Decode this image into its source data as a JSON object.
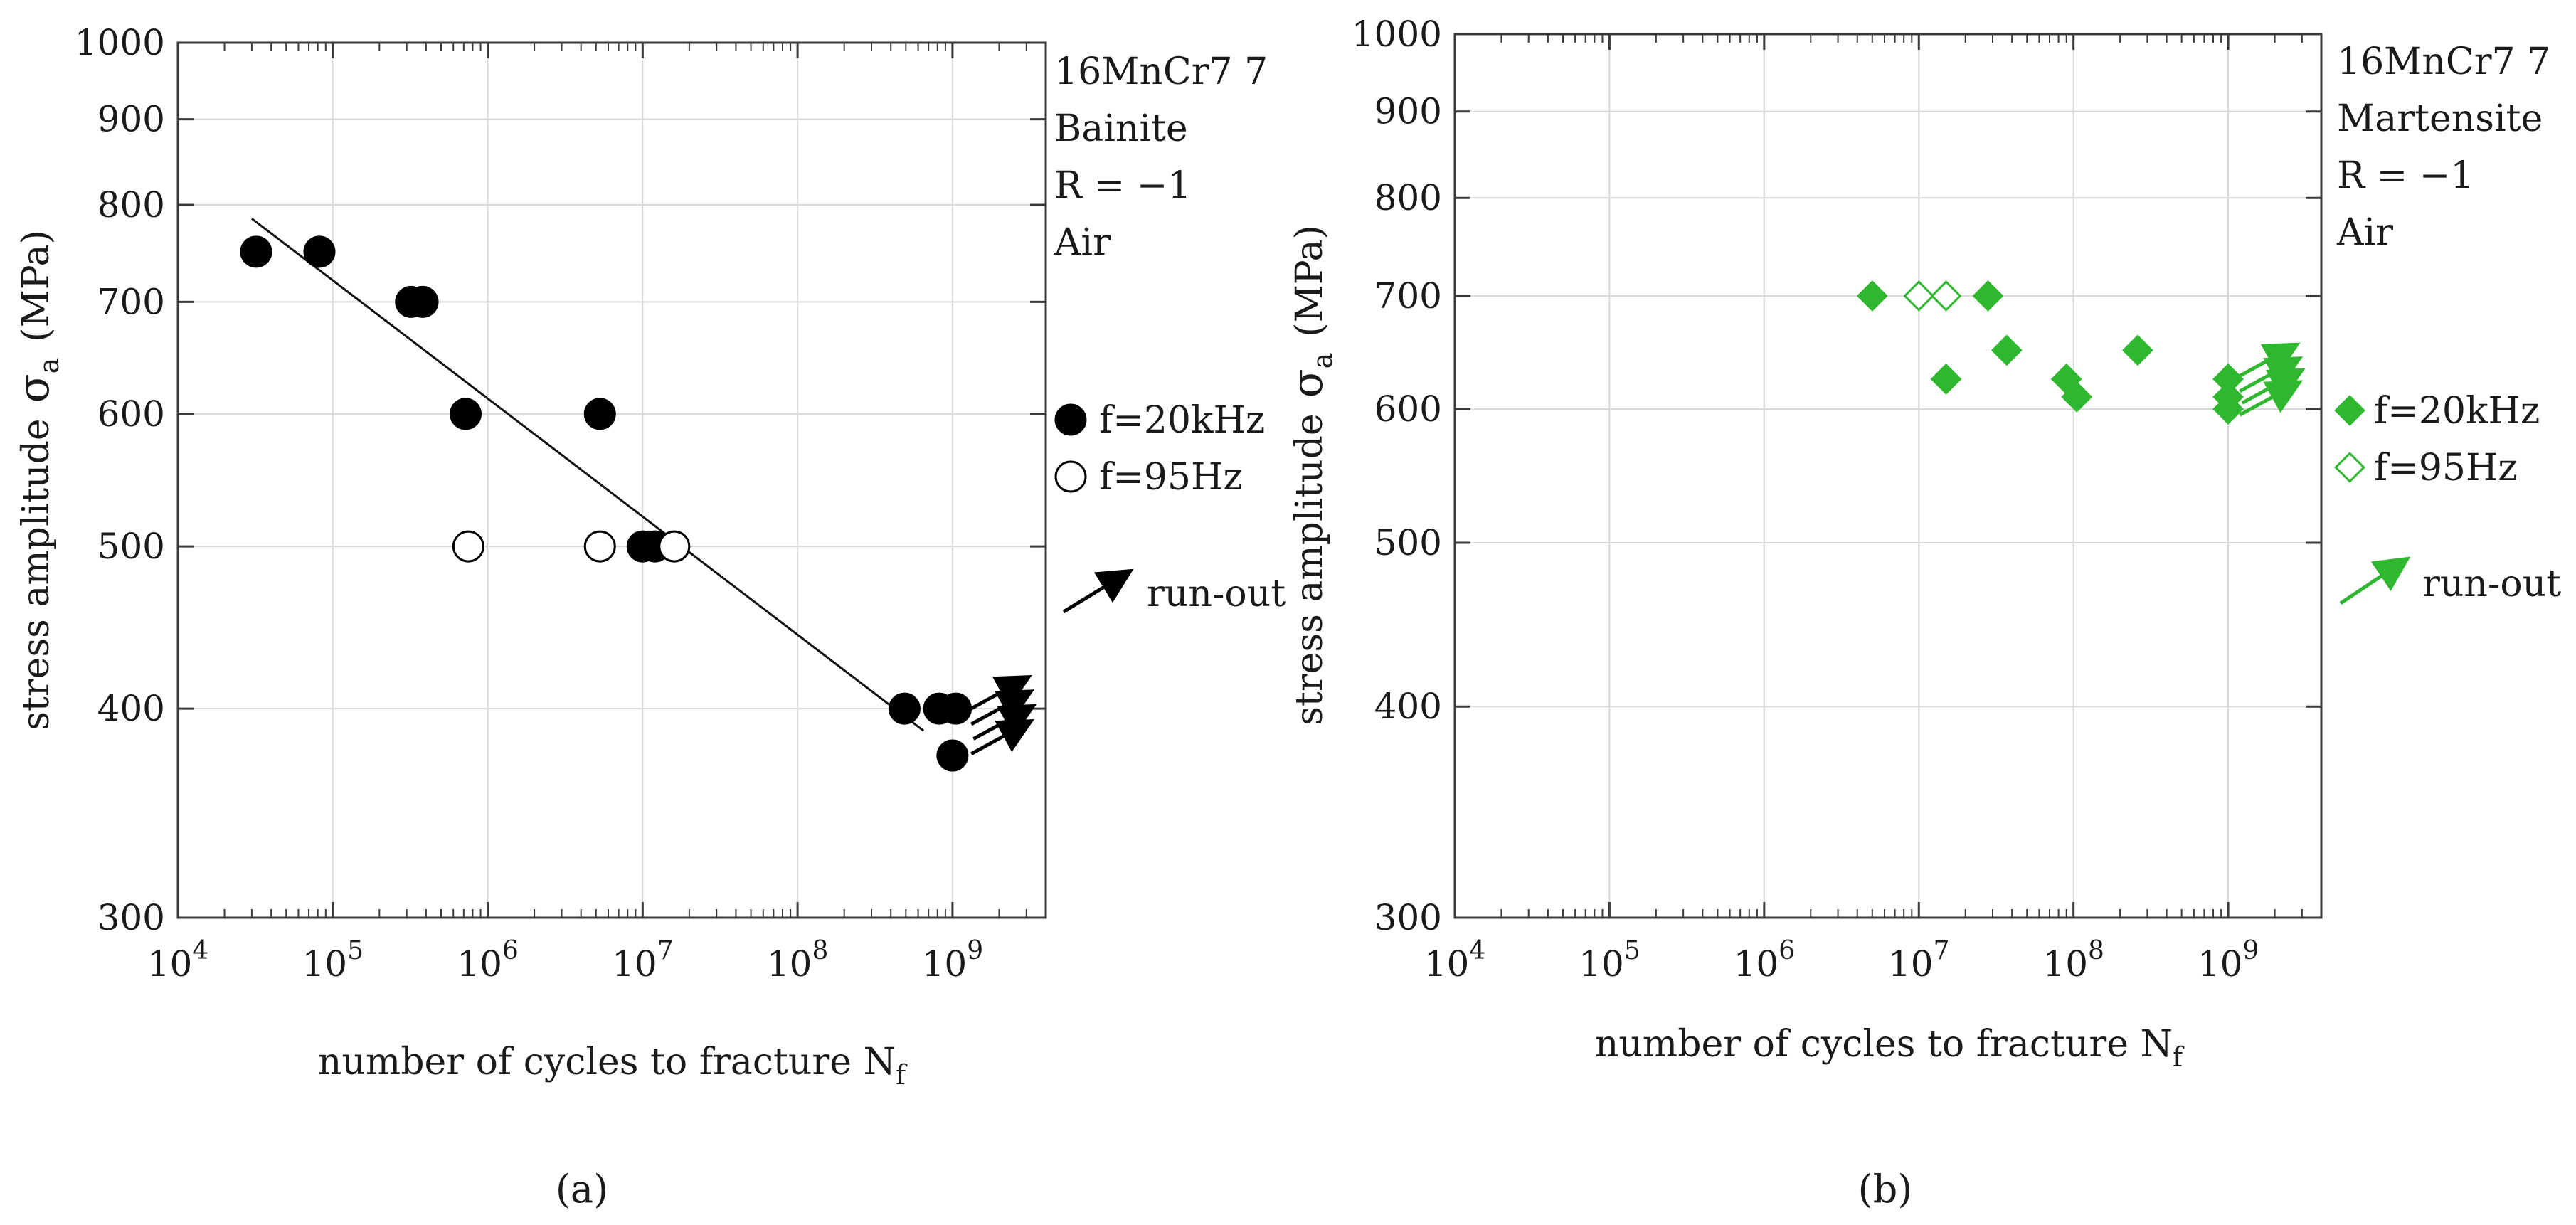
{
  "colors": {
    "green": "#2fb82f",
    "black": "#000000"
  },
  "chart_data": [
    {
      "type": "scatter",
      "panel": "a",
      "caption": "(a)",
      "annotations": [
        "16MnCr7 7",
        "Bainite",
        "R = −1",
        "Air"
      ],
      "xlabel": "number of cycles to fracture N",
      "xlabel_sub": "f",
      "ylabel": "stress amplitude",
      "ylabel_symbol": "σ",
      "ylabel_symbol_sub": "a",
      "ylabel_unit": "(MPa)",
      "xscale": "log",
      "yscale": "log",
      "xlim": [
        10000,
        4000000000
      ],
      "ylim": [
        300,
        1000
      ],
      "xticks": [
        {
          "base": "10",
          "exp": "4",
          "value": 10000
        },
        {
          "base": "10",
          "exp": "5",
          "value": 100000
        },
        {
          "base": "10",
          "exp": "6",
          "value": 1000000
        },
        {
          "base": "10",
          "exp": "7",
          "value": 10000000
        },
        {
          "base": "10",
          "exp": "8",
          "value": 100000000
        },
        {
          "base": "10",
          "exp": "9",
          "value": 1000000000
        }
      ],
      "yticks": [
        300,
        400,
        500,
        600,
        700,
        800,
        900,
        1000
      ],
      "marker": "circle",
      "legend": [
        {
          "label": "f=20kHz",
          "filled": true
        },
        {
          "label": "f=95Hz",
          "filled": false
        },
        {
          "label": "run-out",
          "kind": "arrow"
        }
      ],
      "series": [
        {
          "name": "f=20kHz",
          "filled": true,
          "points": [
            [
              32000,
              750
            ],
            [
              82000,
              750
            ],
            [
              320000,
              700
            ],
            [
              380000,
              700
            ],
            [
              720000,
              600
            ],
            [
              5300000,
              600
            ],
            [
              10000000,
              500
            ],
            [
              12000000,
              500
            ],
            [
              490000000,
              400
            ],
            [
              820000000,
              400
            ],
            [
              1050000000,
              400
            ],
            [
              1000000000,
              375
            ]
          ]
        },
        {
          "name": "f=95Hz",
          "filled": false,
          "points": [
            [
              750000,
              500
            ],
            [
              5300000,
              500
            ],
            [
              16000000,
              500
            ]
          ]
        }
      ],
      "runouts": [
        [
          1450000000,
          408
        ],
        [
          1500000000,
          400
        ],
        [
          1550000000,
          392
        ],
        [
          1500000000,
          384
        ]
      ],
      "fit_line": [
        [
          30000,
          785
        ],
        [
          650000000,
          388
        ]
      ]
    },
    {
      "type": "scatter",
      "panel": "b",
      "caption": "(b)",
      "annotations": [
        "16MnCr7 7",
        "Martensite",
        "R = −1",
        "Air"
      ],
      "xlabel": "number of cycles to fracture N",
      "xlabel_sub": "f",
      "ylabel": "stress amplitude",
      "ylabel_symbol": "σ",
      "ylabel_symbol_sub": "a",
      "ylabel_unit": "(MPa)",
      "xscale": "log",
      "yscale": "log",
      "xlim": [
        10000,
        4000000000
      ],
      "ylim": [
        300,
        1000
      ],
      "xticks": [
        {
          "base": "10",
          "exp": "4",
          "value": 10000
        },
        {
          "base": "10",
          "exp": "5",
          "value": 100000
        },
        {
          "base": "10",
          "exp": "6",
          "value": 1000000
        },
        {
          "base": "10",
          "exp": "7",
          "value": 10000000
        },
        {
          "base": "10",
          "exp": "8",
          "value": 100000000
        },
        {
          "base": "10",
          "exp": "9",
          "value": 1000000000
        }
      ],
      "yticks": [
        300,
        400,
        500,
        600,
        700,
        800,
        900,
        1000
      ],
      "marker": "diamond",
      "legend": [
        {
          "label": "f=20kHz",
          "filled": true
        },
        {
          "label": "f=95Hz",
          "filled": false
        },
        {
          "label": "run-out",
          "kind": "arrow"
        }
      ],
      "series": [
        {
          "name": "f=20kHz",
          "filled": true,
          "points": [
            [
              5000000,
              700
            ],
            [
              28000000,
              700
            ],
            [
              15000000,
              625
            ],
            [
              37000000,
              650
            ],
            [
              90000000,
              625
            ],
            [
              105000000,
              610
            ],
            [
              260000000,
              650
            ],
            [
              1000000000,
              625
            ],
            [
              1000000000,
              610
            ],
            [
              1000000000,
              600
            ]
          ]
        },
        {
          "name": "f=95Hz",
          "filled": false,
          "points": [
            [
              10000000,
              700
            ],
            [
              15000000,
              700
            ]
          ]
        }
      ],
      "runouts": [
        [
          1300000000,
          640
        ],
        [
          1350000000,
          628
        ],
        [
          1400000000,
          618
        ],
        [
          1350000000,
          608
        ]
      ]
    }
  ]
}
